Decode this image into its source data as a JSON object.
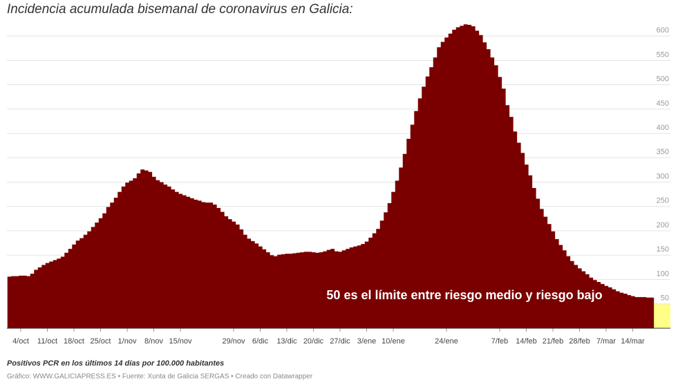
{
  "chart_data": {
    "type": "step-area",
    "title": "Incidencia acumulada bisemanal de coronavirus en Galicia:",
    "annotation": "50 es el límite entre riesgo medio y riesgo bajo",
    "note": "Positivos PCR en los últimos 14 días por 100.000 habitantes",
    "source": "Gráfico: WWW.GALICIAPRESS.ES • Fuente: Xunta de Galicia SERGAS • Creado con Datawrapper",
    "color": "#7a0000",
    "grid": true,
    "ylim": [
      0,
      630
    ],
    "yticks": [
      50,
      100,
      150,
      200,
      250,
      300,
      350,
      400,
      450,
      500,
      550,
      600
    ],
    "categories": [
      null,
      null,
      null,
      "4/oct",
      null,
      null,
      null,
      null,
      null,
      null,
      "11/oct",
      null,
      null,
      null,
      null,
      null,
      null,
      "18/oct",
      null,
      null,
      null,
      null,
      null,
      null,
      "25/oct",
      null,
      null,
      null,
      null,
      null,
      null,
      "1/nov",
      null,
      null,
      null,
      null,
      null,
      null,
      "8/nov",
      null,
      null,
      null,
      null,
      null,
      null,
      "15/nov",
      null,
      null,
      null,
      null,
      null,
      null,
      null,
      null,
      null,
      null,
      null,
      null,
      null,
      "29/nov",
      null,
      null,
      null,
      null,
      null,
      null,
      "6/dic",
      null,
      null,
      null,
      null,
      null,
      null,
      "13/dic",
      null,
      null,
      null,
      null,
      null,
      null,
      "20/dic",
      null,
      null,
      null,
      null,
      null,
      null,
      "27/dic",
      null,
      null,
      null,
      null,
      null,
      null,
      "3/ene",
      null,
      null,
      null,
      null,
      null,
      null,
      "10/ene",
      null,
      null,
      null,
      null,
      null,
      null,
      null,
      null,
      null,
      null,
      null,
      null,
      null,
      "24/ene",
      null,
      null,
      null,
      null,
      null,
      null,
      null,
      null,
      null,
      null,
      null,
      null,
      null,
      "7/feb",
      null,
      null,
      null,
      null,
      null,
      null,
      "14/feb",
      null,
      null,
      null,
      null,
      null,
      null,
      "21/feb",
      null,
      null,
      null,
      null,
      null,
      null,
      "28/feb",
      null,
      null,
      null,
      null,
      null,
      null,
      "7/mar",
      null,
      null,
      null,
      null,
      null,
      null,
      "14/mar",
      null,
      null,
      null,
      null,
      null
    ],
    "values": [
      106,
      107,
      107,
      108,
      108,
      107,
      112,
      120,
      125,
      130,
      134,
      137,
      140,
      143,
      147,
      155,
      163,
      172,
      180,
      185,
      192,
      199,
      208,
      217,
      226,
      236,
      249,
      258,
      268,
      280,
      291,
      299,
      303,
      308,
      318,
      326,
      324,
      321,
      311,
      304,
      300,
      295,
      291,
      285,
      280,
      276,
      273,
      270,
      267,
      264,
      262,
      259,
      258,
      258,
      254,
      247,
      239,
      230,
      224,
      219,
      213,
      203,
      192,
      184,
      179,
      174,
      168,
      162,
      156,
      150,
      148,
      151,
      152,
      153,
      153,
      154,
      155,
      156,
      157,
      157,
      156,
      155,
      156,
      158,
      161,
      163,
      158,
      157,
      160,
      163,
      166,
      168,
      170,
      173,
      178,
      186,
      195,
      204,
      221,
      238,
      257,
      280,
      303,
      330,
      358,
      389,
      418,
      446,
      472,
      496,
      517,
      536,
      556,
      577,
      588,
      597,
      605,
      613,
      618,
      621,
      624,
      623,
      620,
      611,
      602,
      587,
      573,
      556,
      540,
      516,
      492,
      458,
      434,
      404,
      381,
      360,
      336,
      314,
      288,
      266,
      245,
      229,
      214,
      199,
      183,
      171,
      160,
      148,
      138,
      130,
      123,
      117,
      111,
      104,
      99,
      95,
      91,
      87,
      84,
      80,
      76,
      73,
      71,
      68,
      66,
      64,
      64,
      64,
      63,
      63
    ]
  }
}
